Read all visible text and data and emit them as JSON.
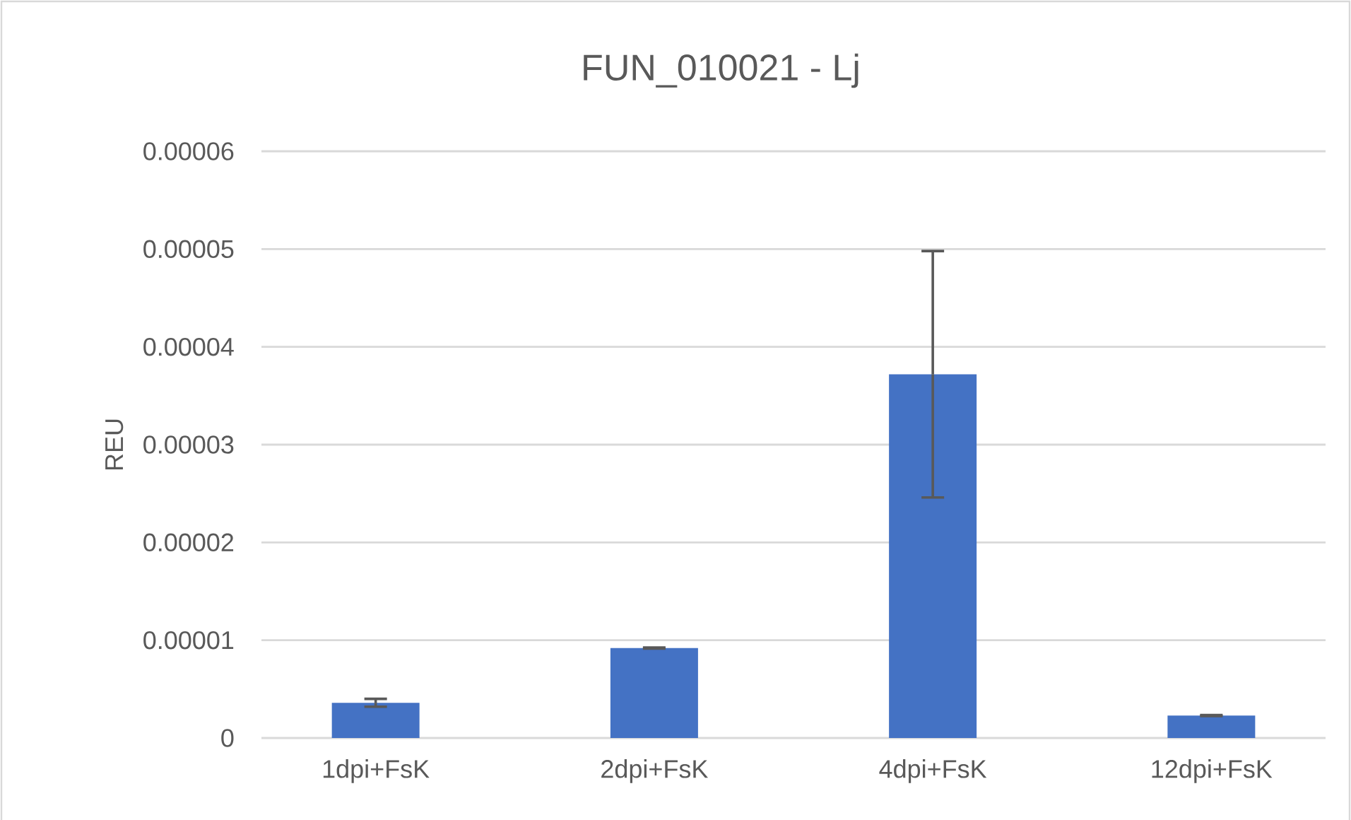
{
  "chart_data": {
    "type": "bar",
    "title": "FUN_010021 - Lj",
    "ylabel": "REU",
    "categories": [
      "1dpi+FsK",
      "2dpi+FsK",
      "4dpi+FsK",
      "12dpi+FsK"
    ],
    "values": [
      3.6e-06,
      9.2e-06,
      3.72e-05,
      2.3e-06
    ],
    "errors": [
      4e-07,
      5e-08,
      1.26e-05,
      5e-08
    ],
    "color": "#4472c4",
    "ylim": [
      0,
      6e-05
    ],
    "yticks": [
      0,
      {
        "value": 1e-05,
        "label": "0.00001"
      },
      {
        "value": 2e-05,
        "label": "0.00002"
      },
      {
        "value": 3e-05,
        "label": "0.00003"
      },
      {
        "value": 4e-05,
        "label": "0.00004"
      },
      {
        "value": 5e-05,
        "label": "0.00005"
      },
      {
        "value": 6e-05,
        "label": "0.00006"
      }
    ],
    "grid": "y"
  }
}
